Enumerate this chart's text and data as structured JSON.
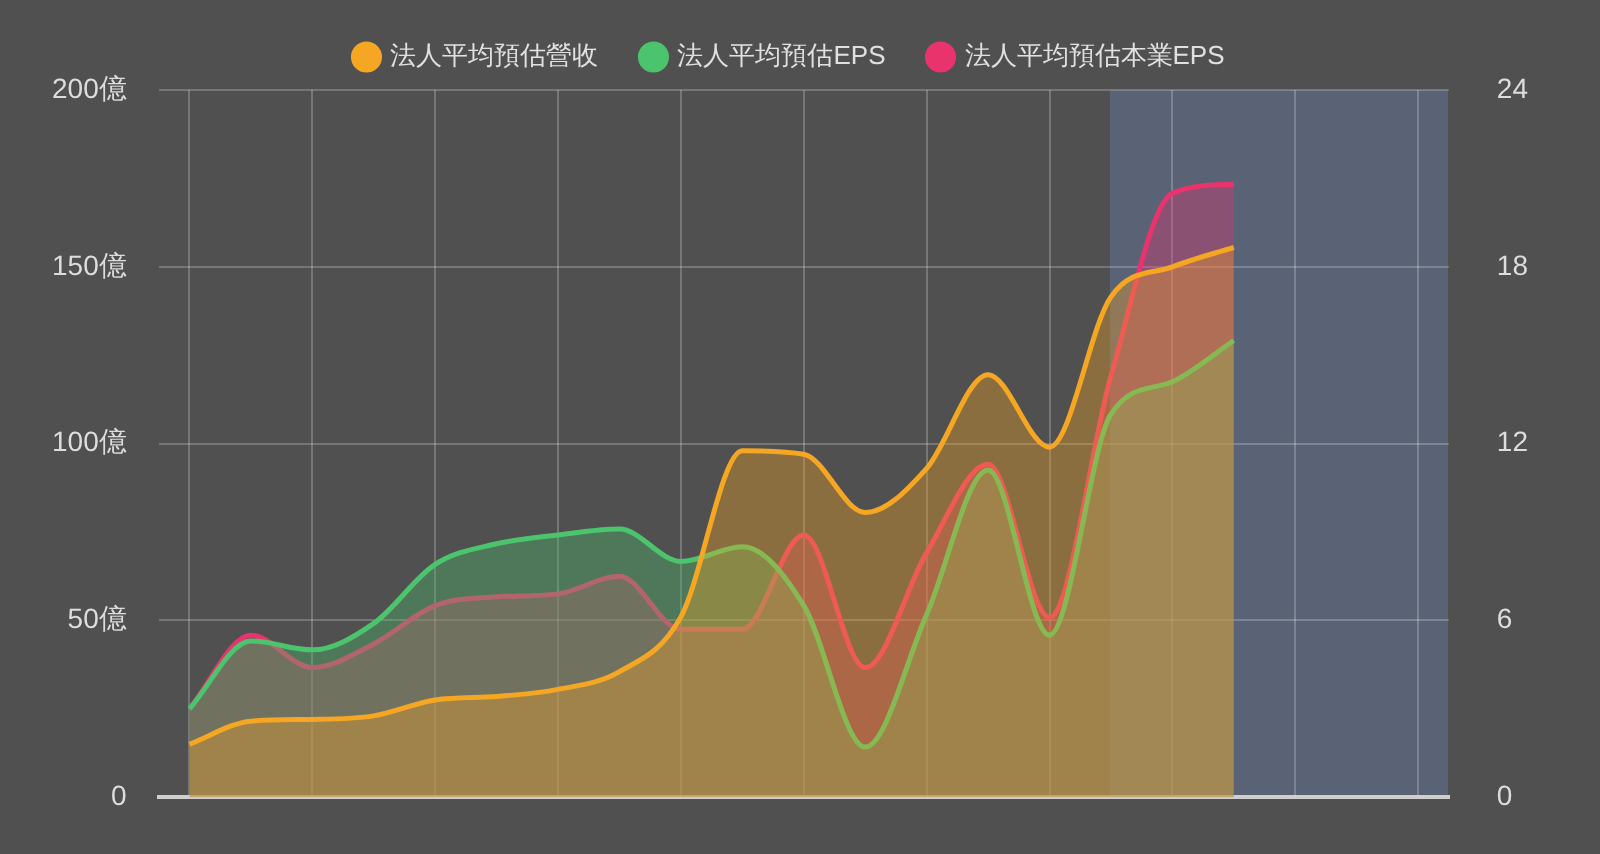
{
  "chart_data": {
    "type": "area",
    "categories": [
      null,
      null,
      null,
      null,
      null,
      null,
      null,
      null,
      null,
      null,
      null,
      null,
      null,
      null,
      null,
      null,
      null,
      null,
      null,
      null,
      null
    ],
    "ylim": [
      0,
      200
    ],
    "yticks": [
      {
        "value": 0,
        "label": "0"
      },
      {
        "value": 50,
        "label": "50億"
      },
      {
        "value": 100,
        "label": "100億"
      },
      {
        "value": 150,
        "label": "150億"
      },
      {
        "value": 200,
        "label": "200億"
      }
    ],
    "y2lim": [
      0,
      24
    ],
    "y2ticks": [
      0,
      6,
      12,
      18,
      24
    ],
    "grid": true,
    "legend": "top",
    "marker": "none",
    "series": [
      {
        "name": "法人平均預估營收",
        "color": "#f5a623",
        "values": [
          15,
          21.5,
          22,
          23,
          27.5,
          28.5,
          30.5,
          35.5,
          51,
          98,
          97,
          80.5,
          93,
          119.5,
          99,
          141.5,
          150,
          155.5,
          null,
          null,
          null
        ]
      },
      {
        "name": "法人平均預估EPS",
        "color": "#4cc46e",
        "axis": "y2",
        "values": [
          3.0,
          5.3,
          5.0,
          5.9,
          7.9,
          8.6,
          8.9,
          9.1,
          8.0,
          8.5,
          6.5,
          1.7,
          6.2,
          11.1,
          5.5,
          13.0,
          14.1,
          15.5,
          null,
          null,
          null
        ]
      },
      {
        "name": "法人平均預估本業EPS",
        "color": "#e8336d",
        "axis": "y2",
        "values": [
          3.0,
          5.5,
          4.4,
          5.2,
          6.5,
          6.8,
          6.9,
          7.5,
          5.7,
          5.7,
          8.9,
          4.4,
          8.3,
          11.3,
          6.1,
          14.3,
          20.5,
          20.8,
          null,
          null,
          null
        ]
      }
    ]
  }
}
